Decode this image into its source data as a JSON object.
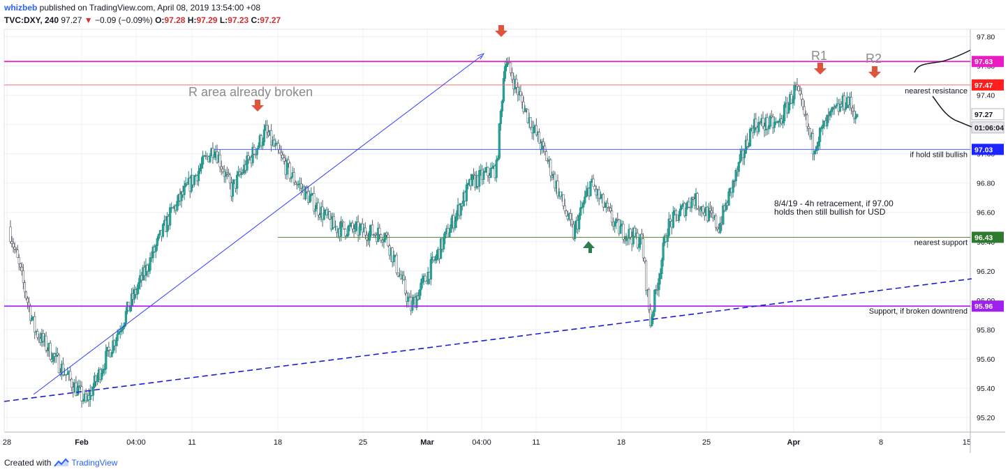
{
  "header": {
    "author": "whizbeb",
    "published": " published on TradingView.com, April 08, 2019 13:54:00 +08",
    "symbol": "TVC:DXY, 240",
    "last": "97.27",
    "change": "−0.09 (−0.09%)",
    "ohlc": {
      "o": "97.28",
      "h": "97.29",
      "l": "97.23",
      "c": "97.27"
    }
  },
  "footer": {
    "created": "Created with",
    "brand": "TradingView"
  },
  "chart_data": {
    "type": "candlestick",
    "title": "TVC:DXY, 240",
    "ylim": [
      95.1,
      97.85
    ],
    "yticks": [
      95.2,
      95.4,
      95.6,
      95.8,
      96.0,
      96.2,
      96.4,
      96.6,
      96.8,
      97.0,
      97.2,
      97.4,
      97.6,
      97.8
    ],
    "xticks": [
      "28",
      "Feb",
      "04:00",
      "11",
      "18",
      "25",
      "Mar",
      "04:00",
      "11",
      "18",
      "25",
      "Apr",
      "8",
      "15"
    ],
    "grid": true,
    "price_labels": [
      {
        "text": "97.63",
        "value": 97.63,
        "color": "#e91ec2"
      },
      {
        "text": "97.47",
        "value": 97.47,
        "color": "#ff1f1f"
      },
      {
        "text": "97.27",
        "value": 97.27,
        "color": "#ffffff"
      },
      {
        "text": "01:06:04",
        "value": 97.18,
        "color": "#e8e8e8"
      },
      {
        "text": "97.03",
        "value": 97.03,
        "color": "#1c24ff"
      },
      {
        "text": "96.43",
        "value": 96.43,
        "color": "#2f7a2f"
      },
      {
        "text": "95.96",
        "value": 95.96,
        "color": "#a020f0"
      }
    ],
    "levels": [
      {
        "value": 97.63,
        "color": "#e91ec2",
        "label": ""
      },
      {
        "value": 97.47,
        "color": "#ff6b6b",
        "label": "nearest resistance"
      },
      {
        "value": 97.03,
        "color": "#4a5cff",
        "label": "if hold still bullish"
      },
      {
        "value": 96.43,
        "color": "#4f8f3f",
        "label": "nearest support"
      },
      {
        "value": 95.96,
        "color": "#a020f0",
        "label": "Support, if broken downtrend"
      }
    ],
    "annotations": {
      "r_area": "R area already broken",
      "r1": "R1",
      "r2": "R2",
      "note_line1": "8/4/19 - 4h retracement, if 97.00",
      "note_line2": "holds then still bullish for USD"
    },
    "anchors": [
      {
        "day": 0,
        "price": 96.5
      },
      {
        "day": 3,
        "price": 95.8
      },
      {
        "day": 9,
        "price": 95.3
      },
      {
        "day": 14,
        "price": 95.95
      },
      {
        "day": 19,
        "price": 96.6
      },
      {
        "day": 24,
        "price": 97.05
      },
      {
        "day": 26,
        "price": 96.75
      },
      {
        "day": 30,
        "price": 97.15
      },
      {
        "day": 33,
        "price": 96.85
      },
      {
        "day": 38,
        "price": 96.5
      },
      {
        "day": 44,
        "price": 96.45
      },
      {
        "day": 47,
        "price": 95.95
      },
      {
        "day": 50,
        "price": 96.3
      },
      {
        "day": 54,
        "price": 96.8
      },
      {
        "day": 57,
        "price": 96.9
      },
      {
        "day": 58,
        "price": 97.65
      },
      {
        "day": 60,
        "price": 97.35
      },
      {
        "day": 63,
        "price": 96.95
      },
      {
        "day": 66,
        "price": 96.45
      },
      {
        "day": 68,
        "price": 96.8
      },
      {
        "day": 71,
        "price": 96.5
      },
      {
        "day": 74,
        "price": 96.4
      },
      {
        "day": 75,
        "price": 95.85
      },
      {
        "day": 77,
        "price": 96.5
      },
      {
        "day": 80,
        "price": 96.7
      },
      {
        "day": 83,
        "price": 96.5
      },
      {
        "day": 87,
        "price": 97.2
      },
      {
        "day": 90,
        "price": 97.2
      },
      {
        "day": 92,
        "price": 97.45
      },
      {
        "day": 94,
        "price": 97.05
      },
      {
        "day": 96,
        "price": 97.25
      },
      {
        "day": 98,
        "price": 97.37
      },
      {
        "day": 99,
        "price": 97.27
      }
    ]
  }
}
